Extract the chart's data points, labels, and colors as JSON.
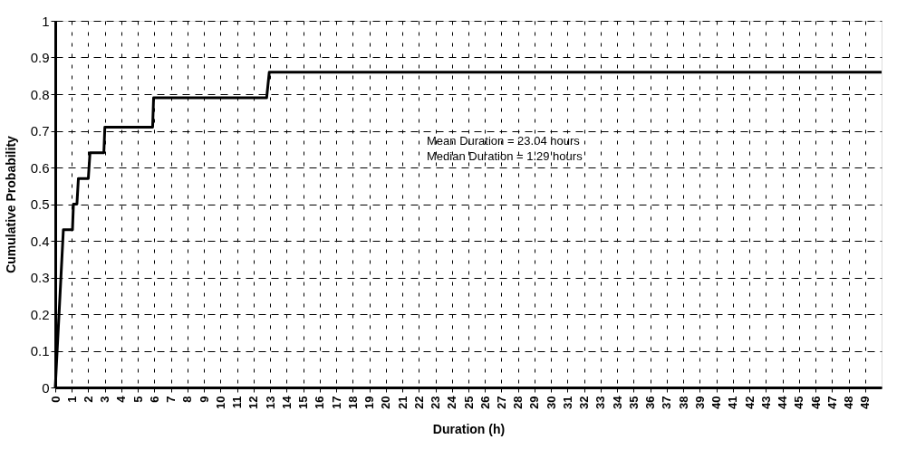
{
  "chart_data": {
    "type": "line",
    "xlabel": "Duration (h)",
    "ylabel": "Cumulative Probability",
    "x": [
      0,
      0.49,
      1.04,
      1.1,
      1.31,
      1.4,
      2.0,
      2.1,
      2.94,
      3.0,
      5.89,
      5.95,
      12.79,
      12.95,
      50
    ],
    "series": [
      {
        "color": "#000000",
        "values": [
          0,
          0.43,
          0.43,
          0.5,
          0.5,
          0.57,
          0.57,
          0.64,
          0.64,
          0.71,
          0.71,
          0.79,
          0.79,
          0.86,
          0.86
        ]
      }
    ],
    "xlim": [
      0,
      50
    ],
    "ylim": [
      0,
      1
    ],
    "xticks": [
      0,
      1,
      2,
      3,
      4,
      5,
      6,
      7,
      8,
      9,
      10,
      11,
      12,
      13,
      14,
      15,
      16,
      17,
      18,
      19,
      20,
      21,
      22,
      23,
      24,
      25,
      26,
      27,
      28,
      29,
      30,
      31,
      32,
      33,
      34,
      35,
      36,
      37,
      38,
      39,
      40,
      41,
      42,
      43,
      44,
      45,
      46,
      47,
      48,
      49
    ],
    "yticks": [
      0,
      0.1,
      0.2,
      0.3,
      0.4,
      0.5,
      0.6,
      0.7,
      0.8,
      0.9,
      1
    ],
    "grid": true,
    "marker": "none",
    "line_style": "solid",
    "annotations": [
      "Mean Duration = 23.04 hours",
      "Median Duration = 1.29 hours"
    ]
  }
}
